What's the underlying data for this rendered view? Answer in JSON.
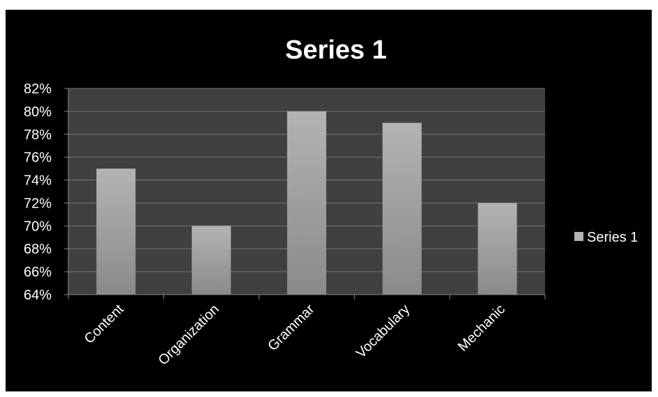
{
  "chart_data": {
    "type": "bar",
    "title": "Series 1",
    "categories": [
      "Content",
      "Organization",
      "Grammar",
      "Vocabulary",
      "Mechanic"
    ],
    "series": [
      {
        "name": "Series 1",
        "values": [
          75,
          70,
          80,
          79,
          72
        ]
      }
    ],
    "ylim": [
      64,
      82
    ],
    "ytick_step": 2,
    "ytick_suffix": "%",
    "grid": true,
    "legend_position": "right",
    "colors": {
      "background": "#000000",
      "plot_area": "#404040",
      "bar_top": "#b3b3b3",
      "bar_bottom": "#8a8a8a",
      "gridline": "#777777",
      "text": "#ffffff"
    }
  }
}
